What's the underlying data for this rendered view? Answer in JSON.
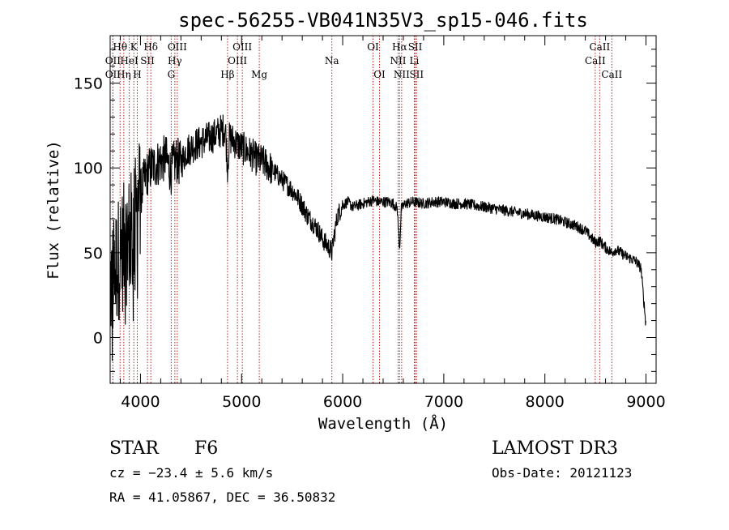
{
  "chart_data": {
    "type": "line",
    "title": "spec-56255-VB041N35V3_sp15-046.fits",
    "xlabel": "Wavelength (Å)",
    "ylabel": "Flux (relative)",
    "xlim": [
      3700,
      9100
    ],
    "ylim": [
      -27,
      178
    ],
    "xticks": [
      4000,
      5000,
      6000,
      7000,
      8000,
      9000
    ],
    "yticks": [
      0,
      50,
      100,
      150
    ],
    "grid": false,
    "legend": "none",
    "spectrum": {
      "x": [
        3700,
        3750,
        3800,
        3850,
        3900,
        3950,
        4000,
        4050,
        4100,
        4150,
        4200,
        4250,
        4300,
        4350,
        4400,
        4450,
        4500,
        4550,
        4600,
        4650,
        4700,
        4750,
        4800,
        4840,
        4862,
        4880,
        4920,
        4960,
        5000,
        5050,
        5100,
        5150,
        5200,
        5250,
        5300,
        5350,
        5400,
        5450,
        5500,
        5550,
        5600,
        5650,
        5700,
        5750,
        5800,
        5850,
        5880,
        5893,
        5910,
        5950,
        6000,
        6050,
        6100,
        6150,
        6200,
        6250,
        6300,
        6350,
        6400,
        6450,
        6500,
        6540,
        6563,
        6580,
        6620,
        6700,
        6800,
        6900,
        7000,
        7100,
        7200,
        7300,
        7400,
        7500,
        7600,
        7700,
        7800,
        7900,
        8000,
        8100,
        8200,
        8300,
        8400,
        8498,
        8542,
        8600,
        8662,
        8700,
        8800,
        8900,
        8950,
        9000
      ],
      "y": [
        30,
        40,
        50,
        55,
        60,
        70,
        85,
        95,
        100,
        102,
        104,
        106,
        98,
        105,
        102,
        110,
        112,
        114,
        115,
        117,
        118,
        120,
        122,
        123,
        100,
        118,
        116,
        114,
        112,
        110,
        108,
        105,
        104,
        102,
        99,
        96,
        93,
        90,
        87,
        83,
        78,
        72,
        68,
        64,
        58,
        54,
        52,
        50,
        58,
        72,
        78,
        80,
        77,
        78,
        79,
        80,
        81,
        80,
        80,
        80,
        79,
        76,
        52,
        76,
        79,
        80,
        79,
        80,
        80,
        79,
        79,
        78,
        77,
        76,
        75,
        74,
        73,
        72,
        71,
        70,
        68,
        66,
        63,
        56,
        57,
        53,
        50,
        52,
        48,
        45,
        41,
        7
      ]
    },
    "spectral_lines": [
      {
        "label": "OII",
        "wavelength": 3727,
        "row": 2
      },
      {
        "label": "Hθ",
        "wavelength": 3798,
        "row": 1
      },
      {
        "label": "OII",
        "wavelength": 3727,
        "row": 3
      },
      {
        "label": "Hη",
        "wavelength": 3835,
        "row": 3
      },
      {
        "label": "HeI",
        "wavelength": 3889,
        "row": 2
      },
      {
        "label": "K",
        "wavelength": 3934,
        "row": 1
      },
      {
        "label": "H",
        "wavelength": 3968,
        "row": 3
      },
      {
        "label": "SII",
        "wavelength": 4069,
        "row": 2
      },
      {
        "label": "Hδ",
        "wavelength": 4102,
        "row": 1
      },
      {
        "label": "OIII",
        "wavelength": 4364,
        "row": 1
      },
      {
        "label": "Hγ",
        "wavelength": 4340,
        "row": 2
      },
      {
        "label": "G",
        "wavelength": 4304,
        "row": 3
      },
      {
        "label": "Hβ",
        "wavelength": 4861,
        "row": 3
      },
      {
        "label": "OIII",
        "wavelength": 5007,
        "row": 1
      },
      {
        "label": "OIII",
        "wavelength": 4959,
        "row": 2
      },
      {
        "label": "Mg",
        "wavelength": 5175,
        "row": 3
      },
      {
        "label": "Na",
        "wavelength": 5893,
        "row": 2
      },
      {
        "label": "OI",
        "wavelength": 6300,
        "row": 1
      },
      {
        "label": "OI",
        "wavelength": 6364,
        "row": 3
      },
      {
        "label": "Hα",
        "wavelength": 6563,
        "row": 1
      },
      {
        "label": "NII",
        "wavelength": 6548,
        "row": 2
      },
      {
        "label": "NII",
        "wavelength": 6583,
        "row": 3
      },
      {
        "label": "SII",
        "wavelength": 6717,
        "row": 1
      },
      {
        "label": "Li",
        "wavelength": 6708,
        "row": 2
      },
      {
        "label": "SII",
        "wavelength": 6731,
        "row": 3
      },
      {
        "label": "CaII",
        "wavelength": 8542,
        "row": 1
      },
      {
        "label": "CaII",
        "wavelength": 8498,
        "row": 2
      },
      {
        "label": "CaII",
        "wavelength": 8662,
        "row": 3
      }
    ],
    "line_color": "#000000",
    "marker_color": "#b22222"
  },
  "info": {
    "object_class": "STAR",
    "subclass": "F6",
    "survey": "LAMOST DR3",
    "redshift": "cz = −23.4 ± 5.6 km/s",
    "obs_date": "Obs-Date: 20121123",
    "coords": "RA =  41.05867, DEC =  36.50832"
  }
}
